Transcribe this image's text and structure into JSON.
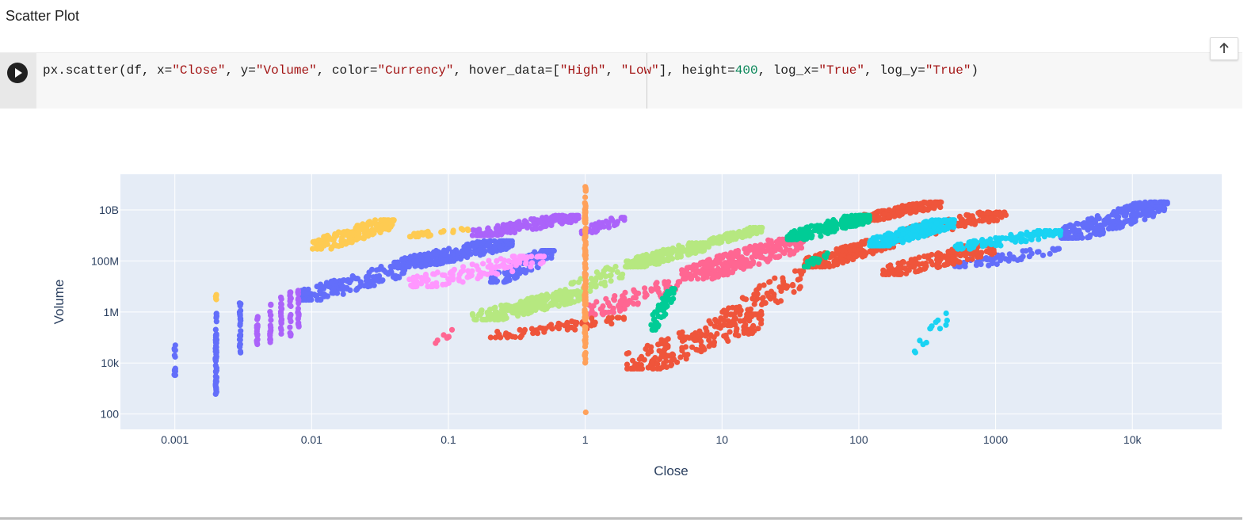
{
  "header": {
    "title": "Scatter Plot"
  },
  "cell": {
    "code_parts": [
      {
        "t": "px.scatter(df, x=",
        "c": ""
      },
      {
        "t": "\"Close\"",
        "c": "s"
      },
      {
        "t": ", y=",
        "c": ""
      },
      {
        "t": "\"Volume\"",
        "c": "s"
      },
      {
        "t": ", color=",
        "c": ""
      },
      {
        "t": "\"Currency\"",
        "c": "s"
      },
      {
        "t": ", hover_data=[",
        "c": ""
      },
      {
        "t": "\"High\"",
        "c": "s"
      },
      {
        "t": ", ",
        "c": ""
      },
      {
        "t": "\"Low\"",
        "c": "s"
      },
      {
        "t": "], height=",
        "c": ""
      },
      {
        "t": "400",
        "c": "n"
      },
      {
        "t": ", log_x=",
        "c": ""
      },
      {
        "t": "\"True\"",
        "c": "s"
      },
      {
        "t": ", log_y=",
        "c": ""
      },
      {
        "t": "\"True\"",
        "c": "s"
      },
      {
        "t": ")",
        "c": ""
      }
    ],
    "run_icon": "play-icon",
    "scroll_icon": "arrow-up-icon"
  },
  "chart_data": {
    "type": "scatter",
    "title": "",
    "xlabel": "Close",
    "ylabel": "Volume",
    "xscale": "log",
    "yscale": "log",
    "xlim": [
      0.0004,
      45000
    ],
    "ylim": [
      25,
      250000000000
    ],
    "x_ticks": [
      {
        "v": 0.001,
        "label": "0.001"
      },
      {
        "v": 0.01,
        "label": "0.01"
      },
      {
        "v": 0.1,
        "label": "0.1"
      },
      {
        "v": 1,
        "label": "1"
      },
      {
        "v": 10,
        "label": "10"
      },
      {
        "v": 100,
        "label": "100"
      },
      {
        "v": 1000,
        "label": "1000"
      },
      {
        "v": 10000,
        "label": "10k"
      }
    ],
    "y_ticks": [
      {
        "v": 100,
        "label": "100"
      },
      {
        "v": 10000,
        "label": "10k"
      },
      {
        "v": 1000000,
        "label": "1M"
      },
      {
        "v": 100000000,
        "label": "100M"
      },
      {
        "v": 10000000000,
        "label": "10B"
      }
    ],
    "grid": true,
    "background": "#e5ecf6",
    "series": [
      {
        "color": "#636efa",
        "clusters": [
          {
            "type": "col",
            "x": 0.001,
            "y": [
              3000,
              60000
            ],
            "n": 14
          },
          {
            "type": "col",
            "x": 0.002,
            "y": [
              500,
              1000000
            ],
            "n": 60
          },
          {
            "type": "col",
            "x": 0.003,
            "y": [
              25000,
              3000000
            ],
            "n": 30
          },
          {
            "type": "band",
            "x": [
              0.008,
              0.05
            ],
            "y": [
              3000000,
              60000000
            ],
            "n": 160
          },
          {
            "type": "band",
            "x": [
              0.04,
              0.3
            ],
            "y": [
              60000000,
              600000000
            ],
            "n": 260
          },
          {
            "type": "band",
            "x": [
              0.2,
              0.6
            ],
            "y": [
              15000000,
              250000000
            ],
            "n": 120
          },
          {
            "type": "band",
            "x": [
              3000,
              18000
            ],
            "y": [
              800000000,
              20000000000
            ],
            "n": 260
          },
          {
            "type": "band",
            "x": [
              500,
              3000
            ],
            "y": [
              60000000,
              300000000
            ],
            "n": 60
          }
        ]
      },
      {
        "color": "#ab63fa",
        "clusters": [
          {
            "type": "col",
            "x": 0.004,
            "y": [
              40000,
              1000000
            ],
            "n": 16
          },
          {
            "type": "col",
            "x": 0.005,
            "y": [
              60000,
              2000000
            ],
            "n": 18
          },
          {
            "type": "col",
            "x": 0.006,
            "y": [
              80000,
              4000000
            ],
            "n": 18
          },
          {
            "type": "col",
            "x": 0.007,
            "y": [
              100000,
              6000000
            ],
            "n": 20
          },
          {
            "type": "col",
            "x": 0.008,
            "y": [
              200000,
              10000000
            ],
            "n": 20
          },
          {
            "type": "band",
            "x": [
              0.15,
              0.9
            ],
            "y": [
              1000000000,
              6000000000
            ],
            "n": 170
          },
          {
            "type": "band",
            "x": [
              0.9,
              2
            ],
            "y": [
              1200000000,
              5000000000
            ],
            "n": 40
          }
        ]
      },
      {
        "color": "#fecb52",
        "clusters": [
          {
            "type": "col",
            "x": 0.002,
            "y": [
              2500000,
              8000000
            ],
            "n": 5
          },
          {
            "type": "band",
            "x": [
              0.01,
              0.04
            ],
            "y": [
              300000000,
              4000000000
            ],
            "n": 170
          },
          {
            "type": "band",
            "x": [
              0.05,
              0.15
            ],
            "y": [
              900000000,
              2000000000
            ],
            "n": 30
          }
        ]
      },
      {
        "color": "#ff97ff",
        "clusters": [
          {
            "type": "band",
            "x": [
              0.05,
              0.5
            ],
            "y": [
              10000000,
              150000000
            ],
            "n": 120
          }
        ]
      },
      {
        "color": "#b6e880",
        "clusters": [
          {
            "type": "band",
            "x": [
              0.15,
              1
            ],
            "y": [
              500000,
              6000000
            ],
            "n": 260
          },
          {
            "type": "band",
            "x": [
              0.6,
              2
            ],
            "y": [
              3000000,
              60000000
            ],
            "n": 60
          },
          {
            "type": "band",
            "x": [
              2,
              8
            ],
            "y": [
              60000000,
              500000000
            ],
            "n": 220
          },
          {
            "type": "band",
            "x": [
              8,
              20
            ],
            "y": [
              500000000,
              2000000000
            ],
            "n": 90
          }
        ]
      },
      {
        "color": "#ff6692",
        "clusters": [
          {
            "type": "band",
            "x": [
              0.08,
              0.11
            ],
            "y": [
              60000,
              200000
            ],
            "n": 8
          },
          {
            "type": "band",
            "x": [
              1,
              5
            ],
            "y": [
              800000,
              15000000
            ],
            "n": 90
          },
          {
            "type": "band",
            "x": [
              5,
              40
            ],
            "y": [
              20000000,
              700000000
            ],
            "n": 280
          }
        ]
      },
      {
        "color": "#ef553b",
        "clusters": [
          {
            "type": "band",
            "x": [
              0.2,
              2
            ],
            "y": [
              100000,
              600000
            ],
            "n": 70
          },
          {
            "type": "band",
            "x": [
              2,
              20
            ],
            "y": [
              6000,
              800000
            ],
            "n": 200
          },
          {
            "type": "band",
            "x": [
              10,
              40
            ],
            "y": [
              300000,
              40000000
            ],
            "n": 80
          },
          {
            "type": "band",
            "x": [
              40,
              200
            ],
            "y": [
              60000000,
              800000000
            ],
            "n": 240
          },
          {
            "type": "band",
            "x": [
              100,
              400
            ],
            "y": [
              4000000000,
              20000000000
            ],
            "n": 180
          },
          {
            "type": "band",
            "x": [
              200,
              1200
            ],
            "y": [
              1000000000,
              8000000000
            ],
            "n": 160
          },
          {
            "type": "band",
            "x": [
              150,
              1000
            ],
            "y": [
              30000000,
              400000000
            ],
            "n": 180
          }
        ]
      },
      {
        "color": "#00cc96",
        "clusters": [
          {
            "type": "band",
            "x": [
              3,
              4.5
            ],
            "y": [
              200000,
              8000000
            ],
            "n": 50
          },
          {
            "type": "band",
            "x": [
              30,
              120
            ],
            "y": [
              700000000,
              6000000000
            ],
            "n": 200
          },
          {
            "type": "band",
            "x": [
              40,
              60
            ],
            "y": [
              60000000,
              200000000
            ],
            "n": 20
          }
        ]
      },
      {
        "color": "#19d3f3",
        "clusters": [
          {
            "type": "band",
            "x": [
              120,
              500
            ],
            "y": [
              400000000,
              4000000000
            ],
            "n": 260
          },
          {
            "type": "band",
            "x": [
              500,
              3000
            ],
            "y": [
              300000000,
              1500000000
            ],
            "n": 100
          },
          {
            "type": "band",
            "x": [
              250,
              450
            ],
            "y": [
              20000,
              900000
            ],
            "n": 14
          }
        ]
      },
      {
        "color": "#ffa15a",
        "clusters": [
          {
            "type": "col",
            "x": 1,
            "y": [
              10000,
              100000000000
            ],
            "n": 130
          },
          {
            "type": "col",
            "x": 1,
            "y": [
              110,
              130
            ],
            "n": 1
          }
        ]
      }
    ]
  }
}
